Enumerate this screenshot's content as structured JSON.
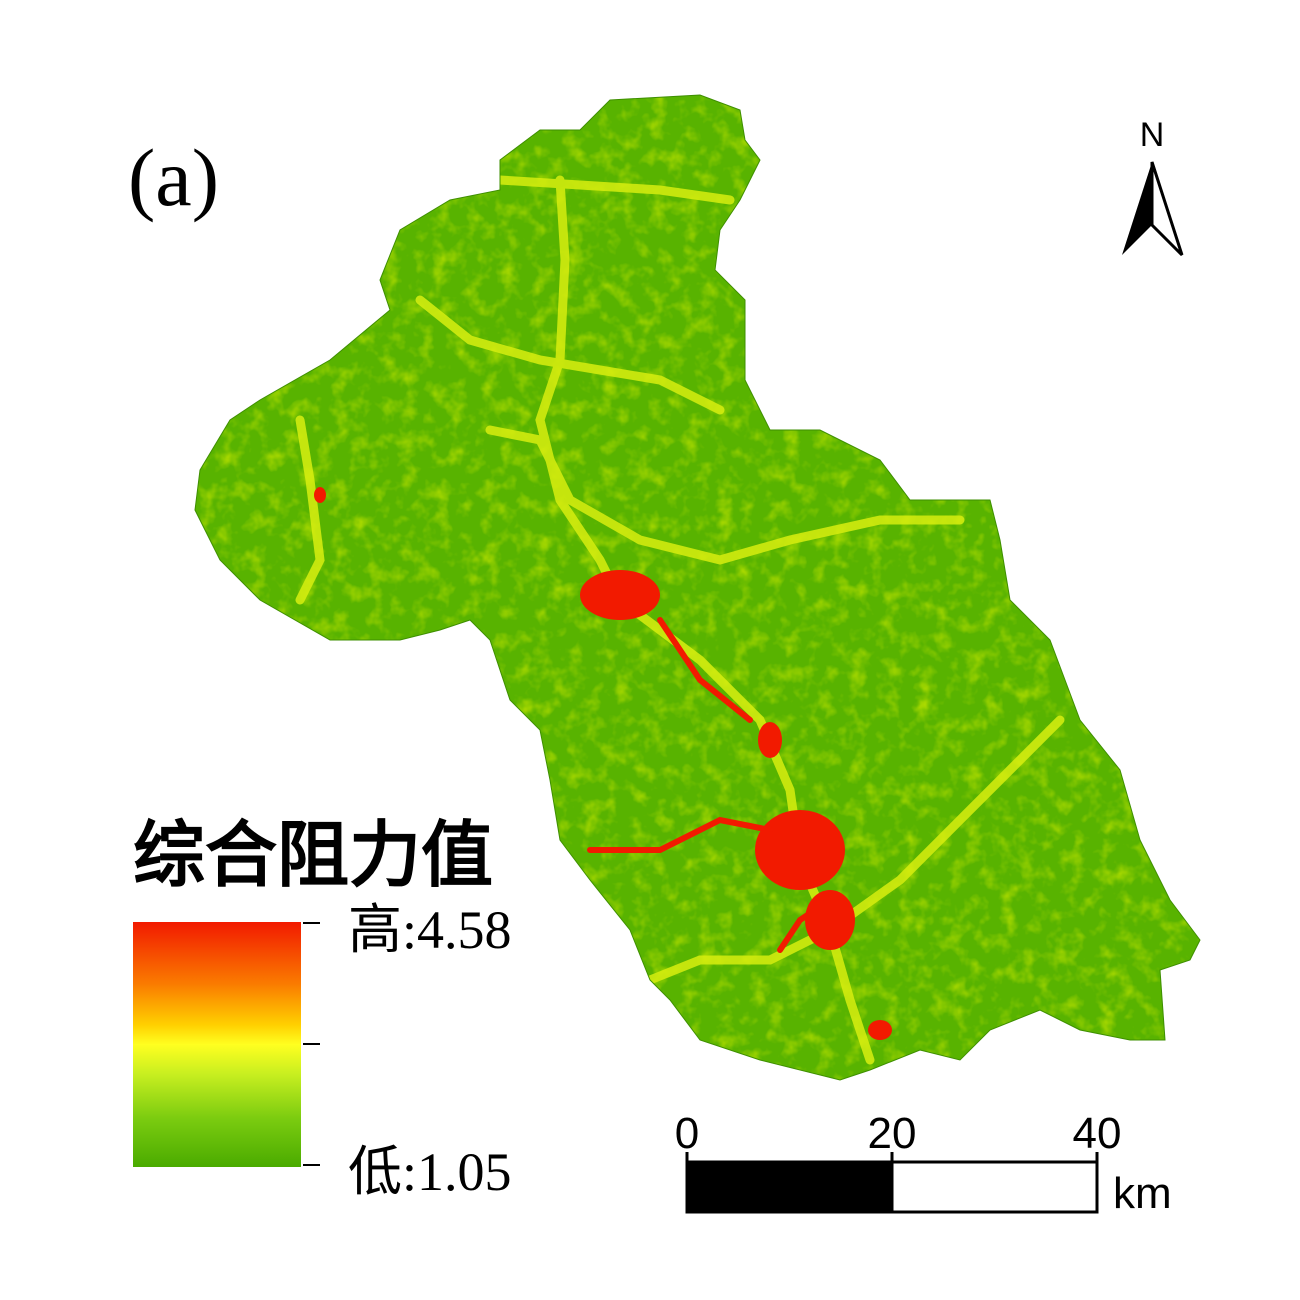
{
  "panel_label": "(a)",
  "north_arrow": {
    "label": "N"
  },
  "legend": {
    "title": "综合阻力值",
    "high": "高:4.58",
    "low": "低:1.05"
  },
  "scale_bar": {
    "ticks": [
      0,
      20,
      40
    ],
    "unit": "km"
  }
}
